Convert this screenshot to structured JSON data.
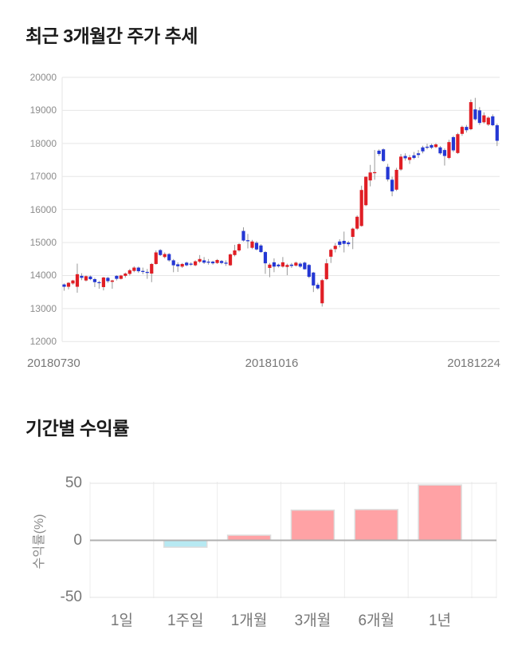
{
  "page": {
    "background": "#ffffff"
  },
  "chart_data": [
    {
      "type": "candlestick",
      "title": "최근 3개월간 주가 추세",
      "ylim": [
        12000,
        20000
      ],
      "y_ticks": [
        "20000",
        "19000",
        "18000",
        "17000",
        "16000",
        "15000",
        "14000",
        "13000",
        "12000"
      ],
      "x_ticks": [
        "20180730",
        "20181016",
        "20181224"
      ],
      "grid": true,
      "colors": {
        "up": "#e01e25",
        "down": "#2437d4",
        "wick": "#999999",
        "grid": "#e6e6e6"
      },
      "ohlc_note": "per-candle [open,high,low,close], estimated from pixels",
      "candles": [
        [
          13730,
          13760,
          13540,
          13660
        ],
        [
          13660,
          13800,
          13580,
          13780
        ],
        [
          13760,
          13870,
          13720,
          13850
        ],
        [
          13660,
          14360,
          13480,
          14040
        ],
        [
          13990,
          14070,
          13860,
          13930
        ],
        [
          13850,
          14000,
          13820,
          13980
        ],
        [
          13970,
          14000,
          13860,
          13890
        ],
        [
          13890,
          13930,
          13650,
          13800
        ],
        [
          13800,
          13840,
          13600,
          13770
        ],
        [
          13650,
          13960,
          13550,
          13940
        ],
        [
          13930,
          13960,
          13780,
          13830
        ],
        [
          13810,
          13870,
          13600,
          13850
        ],
        [
          13990,
          14010,
          13850,
          13900
        ],
        [
          13900,
          14020,
          13880,
          14000
        ],
        [
          13990,
          14090,
          13940,
          14060
        ],
        [
          14050,
          14200,
          14000,
          14160
        ],
        [
          14140,
          14280,
          14100,
          14240
        ],
        [
          14240,
          14270,
          14080,
          14130
        ],
        [
          14140,
          14240,
          14040,
          14110
        ],
        [
          14110,
          14200,
          13900,
          14080
        ],
        [
          14060,
          14380,
          13800,
          14350
        ],
        [
          14350,
          14760,
          14330,
          14700
        ],
        [
          14770,
          14800,
          14590,
          14620
        ],
        [
          14560,
          14700,
          14520,
          14650
        ],
        [
          14650,
          14680,
          14420,
          14460
        ],
        [
          14460,
          14500,
          14100,
          14310
        ],
        [
          14340,
          14400,
          14110,
          14280
        ],
        [
          14270,
          14380,
          14230,
          14350
        ],
        [
          14390,
          14420,
          14280,
          14310
        ],
        [
          14360,
          14400,
          14290,
          14330
        ],
        [
          14310,
          14460,
          14280,
          14430
        ],
        [
          14420,
          14620,
          14380,
          14500
        ],
        [
          14460,
          14560,
          14350,
          14390
        ],
        [
          14420,
          14500,
          14330,
          14410
        ],
        [
          14420,
          14450,
          14330,
          14370
        ],
        [
          14380,
          14500,
          14350,
          14470
        ],
        [
          14440,
          14470,
          14340,
          14380
        ],
        [
          14390,
          14460,
          14290,
          14380
        ],
        [
          14310,
          14670,
          14290,
          14640
        ],
        [
          14620,
          14930,
          14580,
          14760
        ],
        [
          14760,
          14980,
          14720,
          14950
        ],
        [
          15350,
          15460,
          15030,
          15060
        ],
        [
          15070,
          15260,
          14820,
          15050
        ],
        [
          14840,
          15080,
          14800,
          15030
        ],
        [
          14990,
          15040,
          14760,
          14790
        ],
        [
          14910,
          14950,
          14690,
          14710
        ],
        [
          14710,
          14740,
          14050,
          14370
        ],
        [
          14230,
          14380,
          13950,
          14330
        ],
        [
          14400,
          14520,
          14100,
          14270
        ],
        [
          14330,
          14360,
          14240,
          14280
        ],
        [
          14270,
          14560,
          14240,
          14400
        ],
        [
          14260,
          14360,
          14010,
          14320
        ],
        [
          14330,
          14380,
          14230,
          14290
        ],
        [
          14300,
          14420,
          14270,
          14390
        ],
        [
          14360,
          14400,
          14230,
          14270
        ],
        [
          14390,
          14420,
          14180,
          14190
        ],
        [
          14320,
          14350,
          13920,
          13960
        ],
        [
          14090,
          14110,
          13500,
          13700
        ],
        [
          13720,
          13780,
          13570,
          13610
        ],
        [
          13160,
          13900,
          13060,
          13860
        ],
        [
          13890,
          14500,
          13860,
          14370
        ],
        [
          14570,
          14820,
          14380,
          14780
        ],
        [
          14800,
          14980,
          14700,
          14900
        ],
        [
          15030,
          15100,
          14850,
          14930
        ],
        [
          15050,
          15330,
          14700,
          14960
        ],
        [
          15000,
          15050,
          14880,
          14950
        ],
        [
          15170,
          15450,
          14800,
          15420
        ],
        [
          15420,
          15820,
          15380,
          15780
        ],
        [
          15500,
          16720,
          15480,
          16590
        ],
        [
          16130,
          17000,
          16100,
          16990
        ],
        [
          16880,
          17350,
          16700,
          17120
        ],
        [
          17100,
          17800,
          16900,
          17130
        ],
        [
          17780,
          17820,
          17620,
          17680
        ],
        [
          17820,
          17850,
          17440,
          17470
        ],
        [
          17290,
          17380,
          16850,
          16910
        ],
        [
          16900,
          16990,
          16400,
          16550
        ],
        [
          16600,
          17260,
          16560,
          17200
        ],
        [
          17210,
          17680,
          17170,
          17600
        ],
        [
          17620,
          17700,
          17480,
          17550
        ],
        [
          17500,
          17650,
          17380,
          17580
        ],
        [
          17640,
          17740,
          17520,
          17560
        ],
        [
          17700,
          17800,
          17560,
          17650
        ],
        [
          17880,
          17930,
          17700,
          17760
        ],
        [
          17900,
          17990,
          17820,
          17890
        ],
        [
          17950,
          17990,
          17830,
          17870
        ],
        [
          17890,
          18010,
          17860,
          17970
        ],
        [
          17880,
          17920,
          17660,
          17700
        ],
        [
          17800,
          17850,
          17330,
          17620
        ],
        [
          17560,
          18110,
          17520,
          18040
        ],
        [
          18190,
          18230,
          17740,
          17790
        ],
        [
          17710,
          18320,
          17680,
          18280
        ],
        [
          18290,
          18540,
          18230,
          18500
        ],
        [
          18500,
          18560,
          18330,
          18400
        ],
        [
          18430,
          19330,
          18400,
          19250
        ],
        [
          19030,
          19380,
          18690,
          18730
        ],
        [
          19000,
          19100,
          18560,
          18620
        ],
        [
          18640,
          18940,
          18600,
          18850
        ],
        [
          18570,
          18820,
          18530,
          18780
        ],
        [
          18820,
          18880,
          18520,
          18550
        ],
        [
          18550,
          18600,
          17920,
          18080
        ]
      ]
    },
    {
      "type": "bar",
      "title": "기간별 수익률",
      "ylabel": "수익률(%)",
      "y_ticks": [
        "50",
        "0",
        "-50"
      ],
      "ylim": [
        -50,
        50
      ],
      "categories": [
        "1일",
        "1주일",
        "1개월",
        "3개월",
        "6개월",
        "1년"
      ],
      "values": [
        0,
        -6,
        4.5,
        26.5,
        27,
        48.5
      ],
      "grid": true,
      "legend": false,
      "colors": {
        "positive": "#ffa2a5",
        "negative": "#b7e9f2",
        "bar_stroke": "#dddddd",
        "zero_line": "#b0b0b0",
        "grid": "#e3e3e3",
        "column_grid": "#ececec"
      }
    }
  ]
}
